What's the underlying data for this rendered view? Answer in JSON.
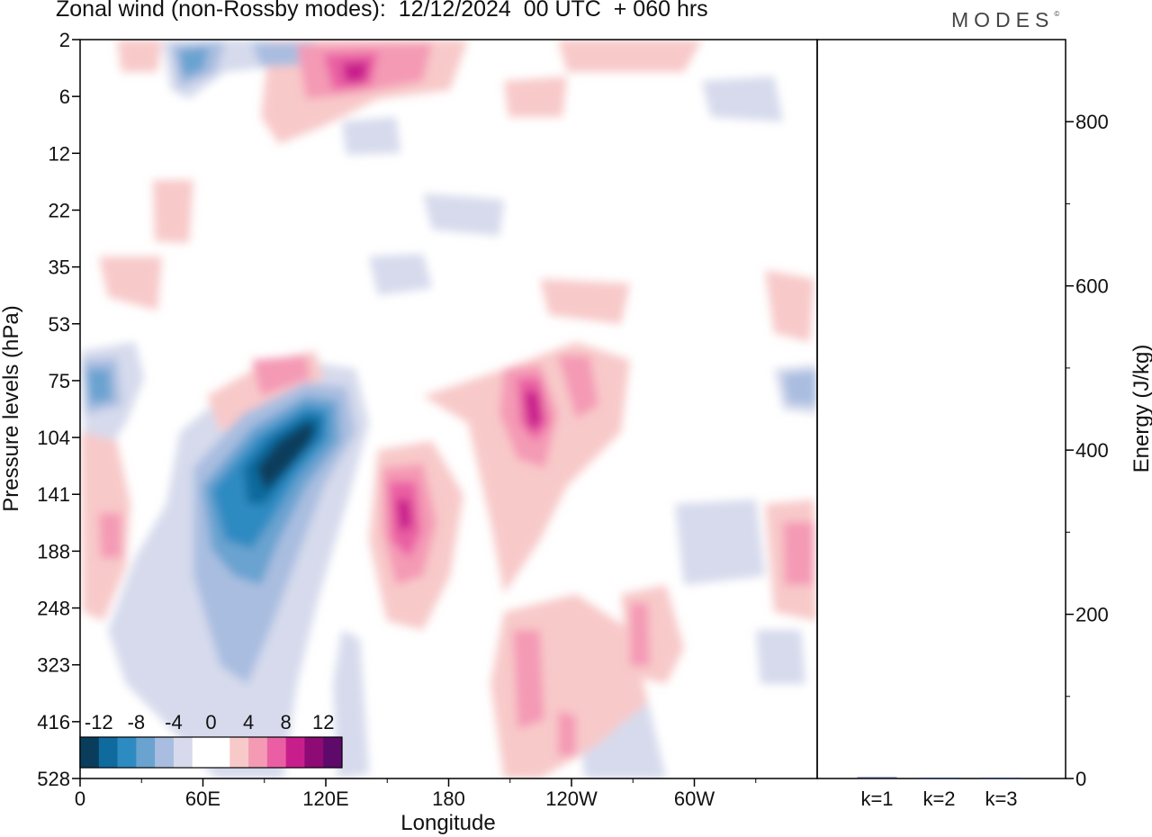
{
  "header": {
    "title": "Zonal wind (non-Rossby modes):  12/12/2024  00 UTC  + 060 hrs",
    "brand": "MODES",
    "brand_mark": "©"
  },
  "chart_data": [
    {
      "type": "heatmap",
      "title": "Zonal wind (non-Rossby modes):  12/12/2024  00 UTC  + 060 hrs",
      "xlabel": "Longitude",
      "ylabel": "Pressure levels (hPa)",
      "x_ticks": [
        "0",
        "60E",
        "120E",
        "180",
        "120W",
        "60W"
      ],
      "x_tick_values": [
        0,
        60,
        120,
        180,
        240,
        300
      ],
      "xlim": [
        0,
        360
      ],
      "y_ticks": [
        "2",
        "6",
        "12",
        "22",
        "35",
        "53",
        "75",
        "104",
        "141",
        "188",
        "248",
        "323",
        "416",
        "528"
      ],
      "y_axis": "pressure levels (hPa), top to bottom",
      "colorbar": {
        "tick_labels": [
          "-12",
          "-8",
          "-4",
          "0",
          "4",
          "8",
          "12"
        ],
        "colors": [
          "#0a3d5c",
          "#0f6a9e",
          "#2d8bc2",
          "#6aa3d0",
          "#a9bde0",
          "#d6daec",
          "#ffffff",
          "#ffffff",
          "#f8c9c9",
          "#f49ab5",
          "#ea5fa3",
          "#c81e8c",
          "#8e0a74",
          "#5e0a6a"
        ]
      },
      "features": [
        {
          "label": "strong easterly (negative) core",
          "lon_range": [
            60,
            125
          ],
          "pressure_range_hpa": [
            90,
            240
          ],
          "min_value": -14
        },
        {
          "label": "westerly (positive) maximum",
          "lon_range": [
            150,
            170
          ],
          "pressure_range_hpa": [
            125,
            190
          ],
          "max_value": 12
        },
        {
          "label": "westerly (positive) maximum",
          "lon_range": [
            210,
            235
          ],
          "pressure_range_hpa": [
            75,
            140
          ],
          "max_value": 12
        },
        {
          "label": "westerly band aloft",
          "lon_range": [
            100,
            175
          ],
          "pressure_range_hpa": [
            2,
            12
          ],
          "max_value": 10
        }
      ]
    },
    {
      "type": "bar",
      "categories": [
        "k=1",
        "k=2",
        "k=3"
      ],
      "values": [
        1.5,
        1.0,
        1.0
      ],
      "ylabel": "Energy (J/kg)",
      "ylim": [
        0,
        900
      ],
      "y_ticks": [
        0,
        200,
        400,
        600,
        800
      ],
      "bar_color": "#1f2a55"
    }
  ]
}
